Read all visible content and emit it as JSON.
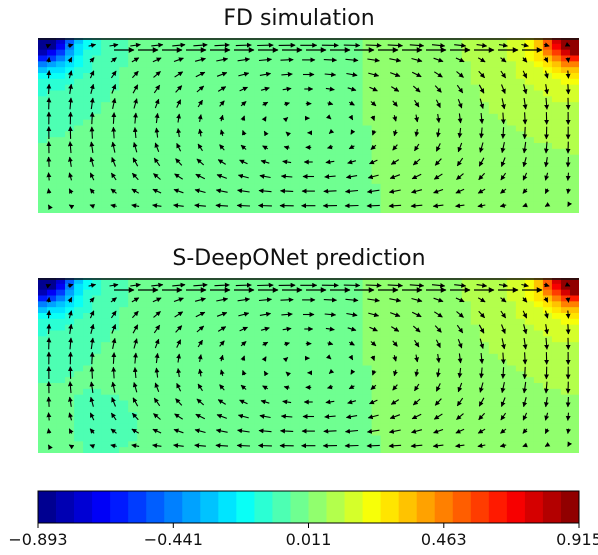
{
  "chart_data": [
    {
      "type": "heatmap",
      "title": "FD simulation",
      "overlay": "quiver",
      "colormap": "jet",
      "field_min": -0.893,
      "field_max": 0.915,
      "corner_extremes": {
        "top_left": -0.893,
        "top_right": 0.915
      },
      "lid_flow_direction": "left-to-right"
    },
    {
      "type": "heatmap",
      "title": "S-DeepONet prediction",
      "overlay": "quiver",
      "colormap": "jet",
      "field_min": -0.893,
      "field_max": 0.915,
      "corner_extremes": {
        "top_left": -0.893,
        "top_right": 0.915
      },
      "lid_flow_direction": "left-to-right"
    }
  ],
  "colorbar": {
    "min": -0.893,
    "max": 0.915,
    "levels": 30,
    "tick_values": [
      -0.893,
      -0.441,
      0.011,
      0.463,
      0.915
    ],
    "tick_labels": [
      "−0.893",
      "−0.441",
      "0.011",
      "0.463",
      "0.915"
    ]
  }
}
